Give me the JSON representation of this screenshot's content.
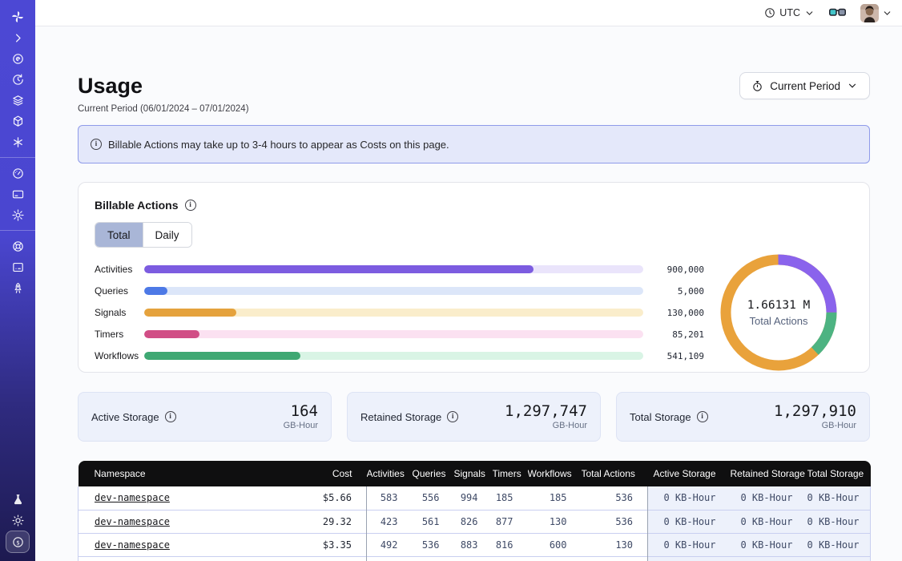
{
  "topbar": {
    "timezone": "UTC"
  },
  "sidebar": {
    "icons": [
      "temporal-logo",
      "chevron-right",
      "namespaces",
      "schedules",
      "layers",
      "cube",
      "asterisk",
      "usage-gauge",
      "billing-card",
      "settings-gear",
      "support-lifebuoy",
      "docs-terminal",
      "rocket",
      "labs-flask",
      "theme-sun",
      "pricing-dollar-coin"
    ]
  },
  "page": {
    "title": "Usage",
    "subtitle": "Current Period (06/01/2024 – 07/01/2024)",
    "period_button": "Current Period"
  },
  "banner": {
    "text": "Billable Actions may take up to 3-4 hours to appear as Costs on this page."
  },
  "billable_actions": {
    "title": "Billable Actions",
    "tabs": {
      "total": "Total",
      "daily": "Daily"
    },
    "bars": [
      {
        "label": "Activities",
        "value": "900,000",
        "pct": 78,
        "color": "#7c5ce0",
        "track_color": "#eae4fb"
      },
      {
        "label": "Queries",
        "value": "5,000",
        "pct": 4.6,
        "color": "#4d79e6",
        "track_color": "#dce6f9"
      },
      {
        "label": "Signals",
        "value": "130,000",
        "pct": 18.4,
        "color": "#e5a23d",
        "track_color": "#faedcb"
      },
      {
        "label": "Timers",
        "value": "85,201",
        "pct": 11,
        "color": "#d14e86",
        "track_color": "#fbe1f1"
      },
      {
        "label": "Workflows",
        "value": "541,109",
        "pct": 31.3,
        "color": "#3fa873",
        "track_color": "#d9f4e5"
      }
    ],
    "donut": {
      "value": "1.66131 M",
      "label": "Total Actions",
      "segments": [
        {
          "name": "purple",
          "color": "#8a63ec",
          "pct": 25
        },
        {
          "name": "green",
          "color": "#4db382",
          "pct": 13
        },
        {
          "name": "orange",
          "color": "#e9a23b",
          "pct": 62
        }
      ]
    }
  },
  "storage_cards": [
    {
      "label": "Active Storage",
      "value": "164",
      "unit": "GB-Hour"
    },
    {
      "label": "Retained Storage",
      "value": "1,297,747",
      "unit": "GB-Hour"
    },
    {
      "label": "Total Storage",
      "value": "1,297,910",
      "unit": "GB-Hour"
    }
  ],
  "table": {
    "headers": [
      "Namespace",
      "Cost",
      "Activities",
      "Queries",
      "Signals",
      "Timers",
      "Workflows",
      "Total Actions",
      "Active Storage",
      "Retained Storage",
      "Total Storage"
    ],
    "rows": [
      [
        "dev-namespace",
        "$5.66",
        "583",
        "556",
        "994",
        "185",
        "185",
        "536",
        "0 KB-Hour",
        "0 KB-Hour",
        "0 KB-Hour"
      ],
      [
        "dev-namespace",
        "29.32",
        "423",
        "561",
        "826",
        "877",
        "130",
        "536",
        "0 KB-Hour",
        "0 KB-Hour",
        "0 KB-Hour"
      ],
      [
        "dev-namespace",
        "$3.35",
        "492",
        "536",
        "883",
        "816",
        "600",
        "130",
        "0 KB-Hour",
        "0 KB-Hour",
        "0 KB-Hour"
      ]
    ]
  },
  "chart_data": [
    {
      "type": "bar",
      "orientation": "horizontal",
      "title": "Billable Actions (Total)",
      "categories": [
        "Activities",
        "Queries",
        "Signals",
        "Timers",
        "Workflows"
      ],
      "values": [
        900000,
        5000,
        130000,
        85201,
        541109
      ],
      "colors": [
        "#7c5ce0",
        "#4d79e6",
        "#e5a23d",
        "#d14e86",
        "#3fa873"
      ]
    },
    {
      "type": "pie",
      "title": "Total Actions",
      "center_value": "1.66131 M",
      "center_label": "Total Actions",
      "slices_pct": [
        25,
        13,
        62
      ],
      "colors": [
        "#8a63ec",
        "#4db382",
        "#e9a23b"
      ]
    }
  ]
}
